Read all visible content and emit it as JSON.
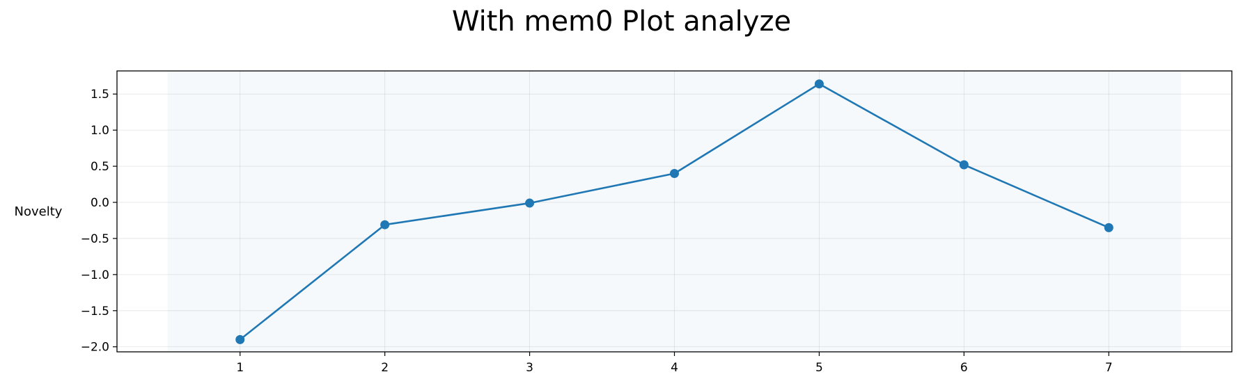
{
  "chart_data": {
    "type": "line",
    "title": "With mem0 Plot analyze",
    "xlabel": "",
    "ylabel": "Novelty",
    "x": [
      1,
      2,
      3,
      4,
      5,
      6,
      7
    ],
    "series": [
      {
        "values": [
          -1.9,
          -0.31,
          -0.01,
          0.4,
          1.64,
          0.52,
          -0.35
        ]
      }
    ],
    "xticks": [
      "1",
      "2",
      "3",
      "4",
      "5",
      "6",
      "7"
    ],
    "yticks": [
      "1.5",
      "1.0",
      "0.5",
      "0.0",
      "−0.5",
      "−1.0",
      "−1.5",
      "−2.0"
    ],
    "ytick_values": [
      1.5,
      1.0,
      0.5,
      0.0,
      -0.5,
      -1.0,
      -1.5,
      -2.0
    ],
    "xlim": [
      0.15,
      7.85
    ],
    "ylim": [
      -2.07,
      1.82
    ],
    "grid": true,
    "shaded_region": [
      0.5,
      7.5
    ],
    "colors": {
      "line": "#1f77b4",
      "shade": "#dbe8f5",
      "grid": "#b0b0b0"
    }
  }
}
